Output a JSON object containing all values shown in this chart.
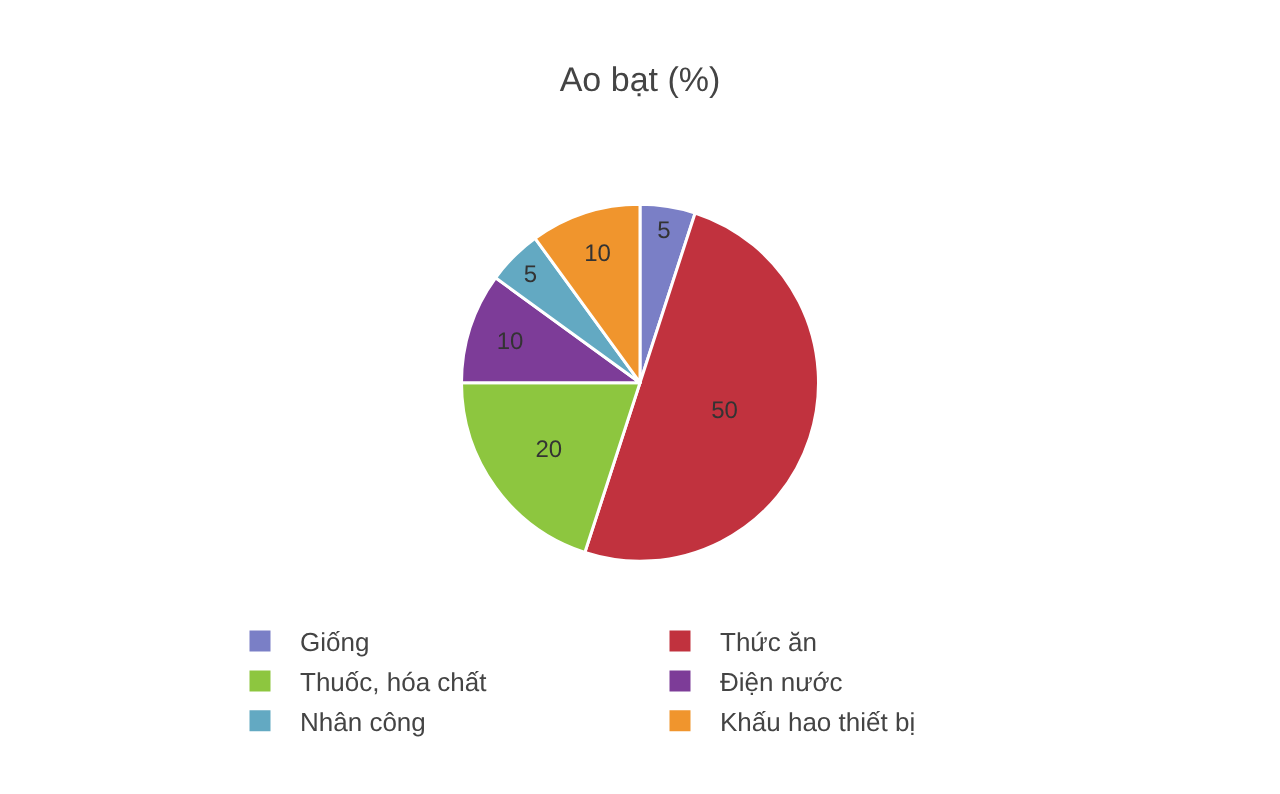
{
  "chart_data": {
    "type": "pie",
    "title": "Ao bạt (%)",
    "categories": [
      "Giống",
      "Thức ăn",
      "Thuốc, hóa chất",
      "Điện nước",
      "Nhân công",
      "Khấu hao thiết bị"
    ],
    "values": [
      5,
      50,
      20,
      10,
      5,
      10
    ],
    "colors": [
      "#7a7fc6",
      "#c1323e",
      "#8dc63f",
      "#7d3c98",
      "#63a9c2",
      "#f0952d"
    ],
    "data_labels": true,
    "legend": "bottom"
  }
}
